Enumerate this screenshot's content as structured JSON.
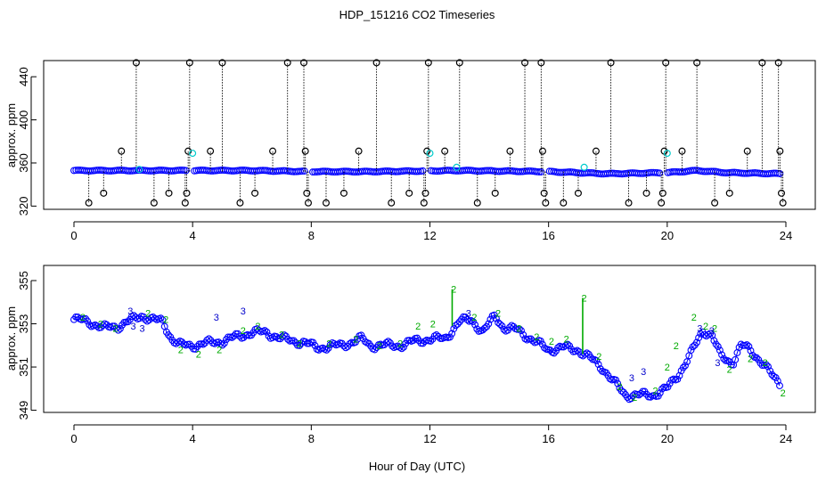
{
  "figure": {
    "title": "HDP_151216  CO2 Timeseries",
    "xlabel": "Hour of Day (UTC)"
  },
  "colors": {
    "frame": "#000000",
    "primary_marker": "#0000ff",
    "secondary_marker": "#00cccc",
    "flag_line": "#00aa00",
    "flag_label_blue": "#0000cc"
  },
  "chart_data": [
    {
      "type": "scatter",
      "title": "",
      "xlabel": "",
      "ylabel": "approx. ppm",
      "xlim": [
        0,
        24
      ],
      "ylim": [
        317,
        455
      ],
      "xticks": [
        "0",
        "4",
        "8",
        "12",
        "16",
        "20",
        "24"
      ],
      "xtick_values": [
        0,
        4,
        8,
        12,
        16,
        20,
        24
      ],
      "yticks": [
        "320",
        "360",
        "400",
        "440"
      ],
      "ytick_values": [
        320,
        360,
        400,
        440
      ],
      "series": [
        {
          "name": "baseline",
          "marker": "open-circle",
          "x_start": 0.0,
          "x_end": 23.8,
          "x_step": 0.07,
          "y_knots": [
            [
              0,
              353
            ],
            [
              6,
              353
            ],
            [
              8,
              352
            ],
            [
              10,
              352
            ],
            [
              13,
              353
            ],
            [
              16,
              352
            ],
            [
              18,
              350
            ],
            [
              20,
              351
            ],
            [
              21,
              353
            ],
            [
              22,
              351
            ],
            [
              23.8,
              350
            ]
          ],
          "gaps": [
            [
              3.8,
              4.0
            ],
            [
              7.8,
              8.0
            ],
            [
              11.8,
              12.0
            ],
            [
              15.8,
              16.0
            ],
            [
              19.8,
              20.0
            ]
          ]
        },
        {
          "name": "spikes",
          "marker": "open-circle-black",
          "points": [
            [
              0.5,
              323
            ],
            [
              1.0,
              332
            ],
            [
              1.6,
              371
            ],
            [
              2.1,
              453
            ],
            [
              2.7,
              323
            ],
            [
              3.2,
              332
            ],
            [
              3.75,
              323
            ],
            [
              3.8,
              332
            ],
            [
              3.85,
              371
            ],
            [
              3.9,
              453
            ],
            [
              4.6,
              371
            ],
            [
              5.0,
              453
            ],
            [
              5.6,
              323
            ],
            [
              6.1,
              332
            ],
            [
              6.7,
              371
            ],
            [
              7.2,
              453
            ],
            [
              7.75,
              453
            ],
            [
              7.8,
              371
            ],
            [
              7.85,
              332
            ],
            [
              7.9,
              323
            ],
            [
              8.5,
              323
            ],
            [
              9.1,
              332
            ],
            [
              9.6,
              371
            ],
            [
              10.2,
              453
            ],
            [
              10.7,
              323
            ],
            [
              11.3,
              332
            ],
            [
              11.8,
              323
            ],
            [
              11.85,
              332
            ],
            [
              11.9,
              371
            ],
            [
              11.95,
              453
            ],
            [
              12.5,
              371
            ],
            [
              13.0,
              453
            ],
            [
              13.6,
              323
            ],
            [
              14.2,
              332
            ],
            [
              14.7,
              371
            ],
            [
              15.2,
              453
            ],
            [
              15.75,
              453
            ],
            [
              15.8,
              371
            ],
            [
              15.85,
              332
            ],
            [
              15.9,
              323
            ],
            [
              16.5,
              323
            ],
            [
              17.0,
              332
            ],
            [
              17.6,
              371
            ],
            [
              18.1,
              453
            ],
            [
              18.7,
              323
            ],
            [
              19.3,
              332
            ],
            [
              19.8,
              323
            ],
            [
              19.85,
              332
            ],
            [
              19.9,
              371
            ],
            [
              19.95,
              453
            ],
            [
              20.5,
              371
            ],
            [
              21.0,
              453
            ],
            [
              21.6,
              323
            ],
            [
              22.1,
              332
            ],
            [
              22.7,
              371
            ],
            [
              23.2,
              453
            ],
            [
              23.75,
              453
            ],
            [
              23.8,
              371
            ],
            [
              23.85,
              332
            ],
            [
              23.9,
              323
            ]
          ]
        },
        {
          "name": "secondary",
          "marker": "open-circle-cyan",
          "points": [
            [
              4.0,
              369
            ],
            [
              12.0,
              369
            ],
            [
              20.0,
              369
            ],
            [
              12.9,
              356
            ],
            [
              17.2,
              356
            ],
            [
              2.2,
              354
            ]
          ]
        }
      ]
    },
    {
      "type": "line",
      "title": "",
      "xlabel": "Hour of Day (UTC)",
      "ylabel": "approx. ppm",
      "xlim": [
        0,
        24
      ],
      "ylim": [
        348.9,
        355.7
      ],
      "xticks": [
        "0",
        "4",
        "8",
        "12",
        "16",
        "20",
        "24"
      ],
      "xtick_values": [
        0,
        4,
        8,
        12,
        16,
        20,
        24
      ],
      "yticks": [
        "349",
        "351",
        "353",
        "355"
      ],
      "ytick_values": [
        349,
        351,
        353,
        355
      ],
      "series": [
        {
          "name": "co2",
          "marker": "open-circle",
          "x_start": 0.0,
          "x_end": 23.85,
          "x_step": 0.065,
          "y_knots": [
            [
              0,
              353.2
            ],
            [
              0.5,
              353.1
            ],
            [
              1,
              352.8
            ],
            [
              1.5,
              352.9
            ],
            [
              2,
              353.2
            ],
            [
              2.3,
              353.4
            ],
            [
              2.6,
              353.2
            ],
            [
              3,
              353.1
            ],
            [
              3.3,
              352.3
            ],
            [
              3.6,
              352.0
            ],
            [
              4,
              352.0
            ],
            [
              4.5,
              352.1
            ],
            [
              5,
              352.2
            ],
            [
              5.5,
              352.4
            ],
            [
              6,
              352.6
            ],
            [
              6.5,
              352.6
            ],
            [
              7,
              352.3
            ],
            [
              7.5,
              352.2
            ],
            [
              7.8,
              352.1
            ],
            [
              8.2,
              351.9
            ],
            [
              9,
              352.0
            ],
            [
              9.7,
              352.3
            ],
            [
              10,
              352.0
            ],
            [
              11,
              352.0
            ],
            [
              11.5,
              352.2
            ],
            [
              12,
              352.3
            ],
            [
              12.5,
              352.3
            ],
            [
              13,
              353.1
            ],
            [
              13.4,
              353.2
            ],
            [
              13.8,
              352.6
            ],
            [
              14.2,
              353.4
            ],
            [
              14.5,
              352.8
            ],
            [
              15,
              352.7
            ],
            [
              15.5,
              352.2
            ],
            [
              16,
              351.8
            ],
            [
              16.5,
              351.9
            ],
            [
              17,
              351.8
            ],
            [
              17.4,
              351.4
            ],
            [
              17.8,
              351.0
            ],
            [
              18.2,
              350.3
            ],
            [
              18.6,
              349.7
            ],
            [
              19,
              349.7
            ],
            [
              19.5,
              349.7
            ],
            [
              20,
              350.0
            ],
            [
              20.4,
              350.7
            ],
            [
              20.8,
              351.6
            ],
            [
              21.2,
              352.7
            ],
            [
              21.5,
              352.5
            ],
            [
              21.8,
              351.5
            ],
            [
              22.2,
              351.2
            ],
            [
              22.5,
              352.0
            ],
            [
              22.8,
              351.8
            ],
            [
              23.2,
              351.2
            ],
            [
              23.6,
              350.5
            ],
            [
              23.85,
              350.2
            ]
          ]
        },
        {
          "name": "flag-2",
          "marker": "label-2",
          "color": "#00aa00",
          "points": [
            [
              0.3,
              353.3
            ],
            [
              0.9,
              353.0
            ],
            [
              1.4,
              352.8
            ],
            [
              2.5,
              353.5
            ],
            [
              3.1,
              353.2
            ],
            [
              3.6,
              351.8
            ],
            [
              4.2,
              351.6
            ],
            [
              4.9,
              351.8
            ],
            [
              5.7,
              352.7
            ],
            [
              6.2,
              352.9
            ],
            [
              7.0,
              352.5
            ],
            [
              7.6,
              352.1
            ],
            [
              8.6,
              352.1
            ],
            [
              9.5,
              352.3
            ],
            [
              10.3,
              352.0
            ],
            [
              11.0,
              352.1
            ],
            [
              11.6,
              352.9
            ],
            [
              12.1,
              353.0
            ],
            [
              12.8,
              354.6
            ],
            [
              13.5,
              353.3
            ],
            [
              14.3,
              353.5
            ],
            [
              15.0,
              352.8
            ],
            [
              15.6,
              352.4
            ],
            [
              16.1,
              352.2
            ],
            [
              16.6,
              352.3
            ],
            [
              17.2,
              354.2
            ],
            [
              17.7,
              351.5
            ],
            [
              18.4,
              350.1
            ],
            [
              18.9,
              349.6
            ],
            [
              19.6,
              349.9
            ],
            [
              20.0,
              351.0
            ],
            [
              20.3,
              352.0
            ],
            [
              20.9,
              353.3
            ],
            [
              21.3,
              352.9
            ],
            [
              21.6,
              352.8
            ],
            [
              22.1,
              350.9
            ],
            [
              22.8,
              351.4
            ],
            [
              23.3,
              351.2
            ],
            [
              23.9,
              349.8
            ]
          ]
        },
        {
          "name": "flag-3",
          "marker": "label-3",
          "color": "#0000cc",
          "points": [
            [
              1.9,
              353.6
            ],
            [
              2.0,
              352.9
            ],
            [
              2.3,
              352.8
            ],
            [
              4.8,
              353.3
            ],
            [
              5.7,
              353.6
            ],
            [
              13.3,
              353.5
            ],
            [
              18.8,
              350.5
            ],
            [
              19.2,
              350.8
            ],
            [
              21.1,
              352.8
            ],
            [
              21.5,
              352.7
            ],
            [
              21.7,
              351.2
            ]
          ]
        }
      ]
    }
  ]
}
